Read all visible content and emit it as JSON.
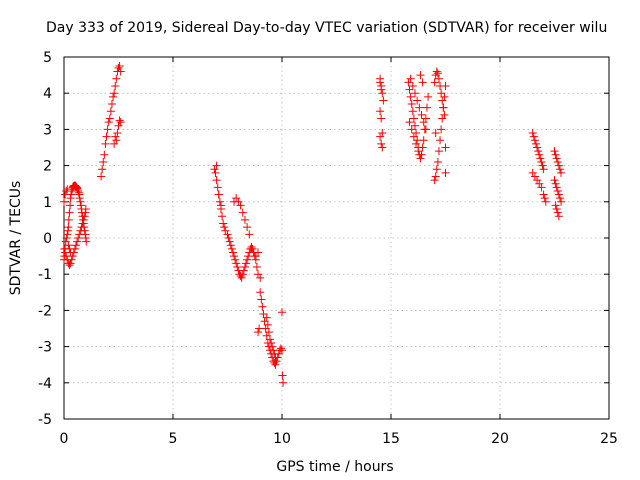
{
  "chart_data": {
    "type": "scatter",
    "title": "Day 333 of 2019, Sidereal Day-to-day VTEC variation (SDTVAR) for receiver wilu",
    "xlabel": "GPS time / hours",
    "ylabel": "SDTVAR / TECUs",
    "xlim": [
      0,
      25
    ],
    "ylim": [
      -5,
      5
    ],
    "xticks": [
      0,
      5,
      10,
      15,
      20,
      25
    ],
    "xtick_labels": [
      "0",
      "5",
      "10",
      "15",
      "20",
      "25"
    ],
    "yticks": [
      -5,
      -4,
      -3,
      -2,
      -1,
      0,
      1,
      2,
      3,
      4,
      5
    ],
    "ytick_labels": [
      "-5",
      "-4",
      "-3",
      "-2",
      "-1",
      "0",
      "1",
      "2",
      "3",
      "4",
      "5"
    ],
    "grid": true,
    "marker": "+",
    "color": "#ff0000",
    "series": [
      {
        "name": "SDTVAR",
        "x": [
          0.0,
          0.02,
          0.05,
          0.08,
          0.12,
          0.15,
          0.18,
          0.2,
          0.22,
          0.25,
          0.28,
          0.3,
          0.32,
          0.35,
          0.38,
          0.4,
          0.42,
          0.45,
          0.48,
          0.5,
          0.52,
          0.55,
          0.58,
          0.6,
          0.62,
          0.65,
          0.68,
          0.7,
          0.72,
          0.75,
          0.78,
          0.8,
          0.82,
          0.85,
          0.88,
          0.9,
          0.92,
          0.95,
          0.98,
          1.0,
          1.02,
          1.0,
          0.98,
          0.95,
          0.9,
          0.85,
          0.8,
          0.75,
          0.7,
          0.65,
          0.6,
          0.55,
          0.5,
          0.45,
          0.4,
          0.35,
          0.3,
          0.25,
          0.2,
          0.15,
          0.1,
          0.05,
          0.02,
          0.0,
          0.05,
          0.1,
          0.15,
          0.2,
          0.25,
          0.3,
          1.7,
          1.75,
          1.8,
          1.85,
          1.9,
          1.95,
          2.0,
          2.05,
          2.1,
          2.15,
          2.2,
          2.25,
          2.3,
          2.35,
          2.4,
          2.45,
          2.5,
          2.55,
          2.6,
          2.4,
          2.45,
          2.5,
          2.55,
          2.6,
          2.3,
          2.35,
          6.9,
          6.95,
          7.0,
          7.05,
          7.1,
          7.15,
          7.2,
          7.25,
          7.3,
          7.35,
          7.4,
          7.5,
          7.55,
          7.6,
          7.65,
          7.7,
          7.75,
          7.8,
          7.85,
          7.9,
          7.95,
          8.0,
          8.05,
          8.1,
          8.15,
          8.2,
          8.25,
          8.3,
          8.35,
          8.4,
          8.45,
          8.5,
          8.55,
          8.6,
          8.65,
          8.7,
          8.75,
          8.8,
          8.85,
          8.9,
          9.0,
          7.0,
          7.1,
          7.2,
          7.8,
          7.9,
          8.0,
          8.1,
          8.2,
          8.3,
          8.4,
          8.5,
          8.6,
          8.7,
          8.8,
          8.9,
          9.0,
          9.05,
          9.1,
          9.15,
          9.2,
          9.25,
          9.3,
          9.35,
          9.4,
          9.45,
          9.5,
          9.55,
          9.6,
          9.65,
          9.7,
          9.75,
          9.8,
          9.85,
          9.9,
          9.95,
          10.0,
          10.02,
          10.05,
          9.3,
          9.35,
          9.4,
          9.45,
          9.5,
          9.55,
          9.6,
          9.65,
          9.7,
          8.9,
          8.95,
          10.0,
          14.5,
          14.55,
          14.6,
          14.65,
          14.5,
          14.55,
          14.6,
          14.5,
          14.55,
          14.6,
          14.5,
          14.55,
          15.8,
          15.85,
          15.9,
          15.95,
          16.0,
          16.05,
          16.1,
          16.15,
          16.2,
          16.25,
          16.3,
          16.35,
          16.4,
          16.45,
          16.5,
          16.55,
          16.6,
          16.65,
          16.7,
          15.9,
          16.0,
          16.1,
          16.2,
          16.3,
          16.4,
          16.5,
          16.6,
          15.85,
          15.95,
          16.05,
          16.15,
          16.25,
          16.35,
          16.45,
          17.0,
          17.05,
          17.1,
          17.15,
          17.2,
          17.25,
          17.3,
          17.35,
          17.4,
          17.45,
          17.5,
          17.0,
          17.05,
          17.1,
          17.15,
          17.2,
          17.25,
          17.3,
          17.35,
          17.4,
          17.45,
          17.5,
          17.5,
          17.05,
          21.5,
          21.55,
          21.6,
          21.65,
          21.7,
          21.75,
          21.8,
          21.85,
          21.9,
          21.95,
          22.0,
          21.5,
          21.6,
          21.7,
          21.8,
          21.9,
          22.0,
          22.05,
          22.1,
          22.5,
          22.55,
          22.6,
          22.65,
          22.7,
          22.75,
          22.8,
          22.5,
          22.55,
          22.6,
          22.65,
          22.7,
          22.75,
          22.8,
          22.55,
          22.6,
          22.65,
          22.7
        ],
        "y": [
          -0.6,
          -0.5,
          -0.3,
          -0.1,
          0.0,
          0.1,
          0.2,
          0.3,
          0.5,
          0.7,
          0.9,
          1.1,
          1.2,
          1.3,
          1.35,
          1.4,
          1.42,
          1.44,
          1.45,
          1.45,
          1.44,
          1.42,
          1.4,
          1.38,
          1.35,
          1.3,
          1.25,
          1.2,
          1.1,
          1.0,
          0.9,
          0.8,
          0.7,
          0.6,
          0.5,
          0.4,
          0.3,
          0.2,
          0.1,
          0.0,
          -0.1,
          0.8,
          0.7,
          0.6,
          0.5,
          0.4,
          0.3,
          0.2,
          0.1,
          0.0,
          -0.1,
          -0.2,
          -0.3,
          -0.4,
          -0.5,
          -0.6,
          -0.7,
          -0.75,
          -0.7,
          -0.6,
          -0.5,
          -0.4,
          -0.3,
          1.0,
          1.2,
          1.3,
          1.35,
          -0.2,
          -0.3,
          -0.4,
          1.7,
          1.9,
          2.1,
          2.3,
          2.6,
          2.8,
          3.0,
          3.2,
          3.3,
          3.5,
          3.7,
          3.9,
          4.0,
          4.2,
          4.4,
          4.6,
          4.7,
          4.75,
          4.6,
          2.7,
          2.9,
          3.1,
          3.25,
          3.2,
          2.6,
          2.8,
          1.9,
          1.8,
          1.6,
          1.4,
          1.2,
          1.0,
          0.8,
          0.6,
          0.4,
          0.3,
          0.2,
          0.1,
          0.0,
          -0.1,
          -0.2,
          -0.3,
          -0.4,
          -0.5,
          -0.6,
          -0.7,
          -0.8,
          -0.9,
          -1.0,
          -1.05,
          -1.1,
          -1.0,
          -0.9,
          -0.8,
          -0.7,
          -0.6,
          -0.5,
          -0.4,
          -0.3,
          -0.25,
          -0.3,
          -0.4,
          -0.5,
          -0.6,
          -0.8,
          -1.0,
          -1.1,
          2.0,
          1.2,
          0.9,
          1.0,
          1.1,
          1.0,
          0.9,
          0.7,
          0.5,
          0.3,
          0.1,
          -0.3,
          -0.4,
          -0.5,
          -0.4,
          -1.5,
          -1.7,
          -1.9,
          -2.1,
          -2.3,
          -2.5,
          -2.7,
          -2.9,
          -3.0,
          -3.1,
          -3.2,
          -3.3,
          -3.4,
          -3.45,
          -3.5,
          -3.4,
          -3.3,
          -3.2,
          -3.1,
          -3.05,
          -3.1,
          -3.8,
          -4.0,
          -2.2,
          -2.4,
          -2.6,
          -2.8,
          -2.9,
          -3.0,
          -3.1,
          -3.2,
          -3.3,
          -2.6,
          -2.5,
          -2.05,
          4.4,
          4.2,
          4.0,
          3.8,
          3.5,
          3.3,
          2.9,
          2.8,
          2.6,
          2.5,
          4.3,
          4.1,
          4.3,
          4.1,
          3.9,
          3.7,
          3.5,
          3.3,
          3.1,
          2.9,
          2.7,
          2.5,
          2.3,
          2.2,
          2.3,
          2.5,
          2.7,
          3.0,
          3.3,
          3.6,
          3.9,
          4.4,
          4.2,
          4.0,
          3.8,
          3.6,
          3.4,
          3.2,
          3.0,
          3.2,
          3.0,
          2.8,
          2.6,
          2.4,
          4.5,
          4.3,
          1.6,
          1.7,
          1.9,
          2.1,
          2.4,
          2.7,
          3.0,
          3.3,
          3.6,
          3.9,
          4.2,
          4.3,
          4.5,
          4.6,
          4.55,
          4.4,
          4.2,
          4.0,
          3.8,
          3.6,
          3.4,
          1.8,
          2.5,
          2.9,
          2.9,
          2.8,
          2.7,
          2.6,
          2.5,
          2.4,
          2.3,
          2.2,
          2.1,
          2.0,
          1.9,
          1.8,
          1.7,
          1.6,
          1.5,
          1.4,
          1.2,
          1.1,
          1.0,
          2.4,
          2.3,
          2.2,
          2.1,
          2.0,
          1.9,
          1.8,
          1.6,
          1.5,
          1.4,
          1.3,
          1.2,
          1.1,
          1.0,
          0.9,
          0.8,
          0.7,
          0.6
        ]
      }
    ]
  }
}
